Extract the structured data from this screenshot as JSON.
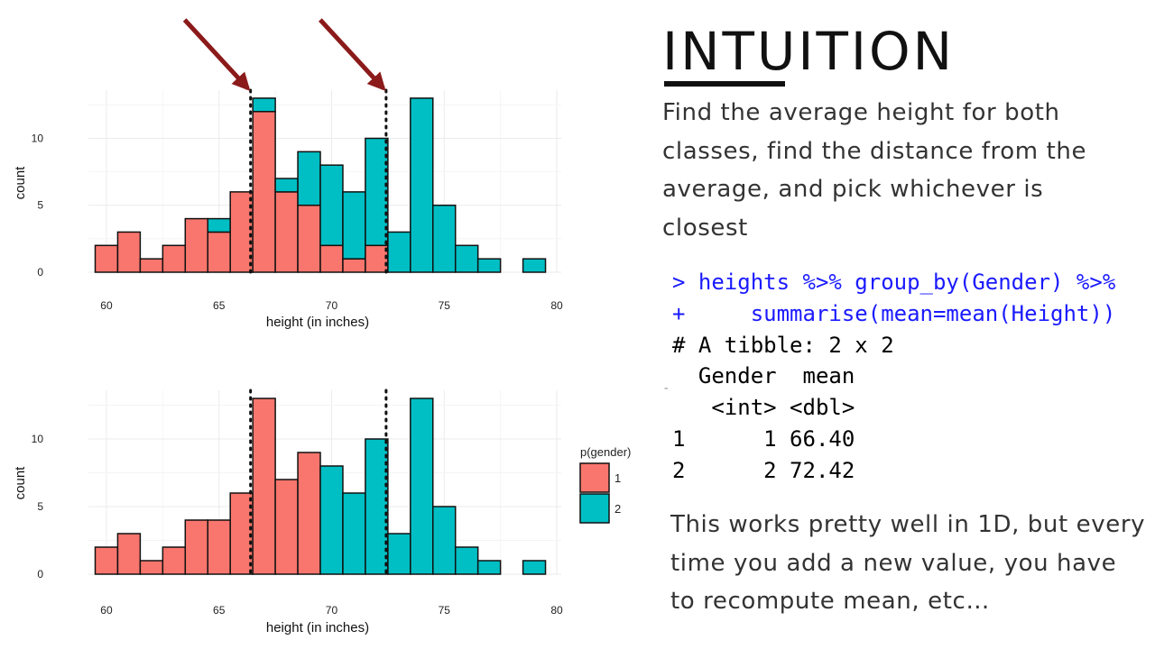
{
  "slide": {
    "title": "INTUITION",
    "intro": "Find the average height for both classes, find the distance from the average, and pick whichever is closest",
    "note": "This works pretty well in 1D, but every time you add a new value, you have to recompute mean, etc…"
  },
  "code": {
    "lines": [
      {
        "text": "> heights %>% group_by(Gender) %>%",
        "kind": "input"
      },
      {
        "text": "+     summarise(mean=mean(Height))",
        "kind": "input"
      },
      {
        "text": "# A tibble: 2 x 2",
        "kind": "output"
      },
      {
        "text": "  Gender  mean",
        "kind": "output"
      },
      {
        "text": "   <int> <dbl>",
        "kind": "output"
      },
      {
        "text": "1      1 66.40",
        "kind": "output"
      },
      {
        "text": "2      2 72.42",
        "kind": "output"
      }
    ],
    "gutter_mark": "-",
    "input_color": "#1a1aff"
  },
  "chart_data": [
    {
      "type": "bar",
      "subtype": "stacked histogram",
      "xlabel": "height (in inches)",
      "ylabel": "count",
      "xlim": [
        59.2,
        80.2
      ],
      "ylim": [
        0,
        13.6
      ],
      "x_ticks": [
        60,
        65,
        70,
        75,
        80
      ],
      "y_ticks": [
        0,
        5,
        10
      ],
      "bin_edges": [
        59.5,
        60.5,
        61.5,
        62.5,
        63.5,
        64.5,
        65.5,
        66.5,
        67.5,
        68.5,
        69.5,
        70.5,
        71.5,
        72.5,
        73.5,
        74.5,
        75.5,
        76.5,
        77.5,
        78.5,
        79.5
      ],
      "series": [
        {
          "name": "1",
          "color": "#f8766d",
          "values": [
            2,
            3,
            1,
            2,
            4,
            3,
            6,
            12,
            6,
            5,
            2,
            1,
            2,
            0,
            0,
            0,
            0,
            0,
            0,
            0
          ]
        },
        {
          "name": "2",
          "color": "#00bfc4",
          "values": [
            0,
            0,
            0,
            0,
            0,
            1,
            0,
            1,
            1,
            4,
            6,
            5,
            8,
            3,
            13,
            5,
            2,
            1,
            0,
            1
          ]
        }
      ],
      "vlines": [
        66.4,
        72.42
      ],
      "arrows_at": [
        66.4,
        72.42
      ],
      "arrow_color": "#8b1a1a",
      "grid": true,
      "legend": "none"
    },
    {
      "type": "bar",
      "subtype": "histogram colored by predicted class",
      "xlabel": "height (in inches)",
      "ylabel": "count",
      "xlim": [
        59.2,
        80.2
      ],
      "ylim": [
        0,
        13.6
      ],
      "x_ticks": [
        60,
        65,
        70,
        75,
        80
      ],
      "y_ticks": [
        0,
        5,
        10
      ],
      "bin_edges": [
        59.5,
        60.5,
        61.5,
        62.5,
        63.5,
        64.5,
        65.5,
        66.5,
        67.5,
        68.5,
        69.5,
        70.5,
        71.5,
        72.5,
        73.5,
        74.5,
        75.5,
        76.5,
        77.5,
        78.5,
        79.5
      ],
      "series": [
        {
          "name": "1",
          "color": "#f8766d",
          "values": [
            2,
            3,
            1,
            2,
            4,
            4,
            6,
            13,
            7,
            9,
            0,
            0,
            0,
            0,
            0,
            0,
            0,
            0,
            0,
            0
          ]
        },
        {
          "name": "2",
          "color": "#00bfc4",
          "values": [
            0,
            0,
            0,
            0,
            0,
            0,
            0,
            0,
            0,
            0,
            8,
            6,
            10,
            3,
            13,
            5,
            2,
            1,
            0,
            1
          ]
        }
      ],
      "vlines": [
        66.4,
        72.42
      ],
      "grid": true,
      "legend": "right",
      "legend_title": "p(gender)"
    }
  ]
}
